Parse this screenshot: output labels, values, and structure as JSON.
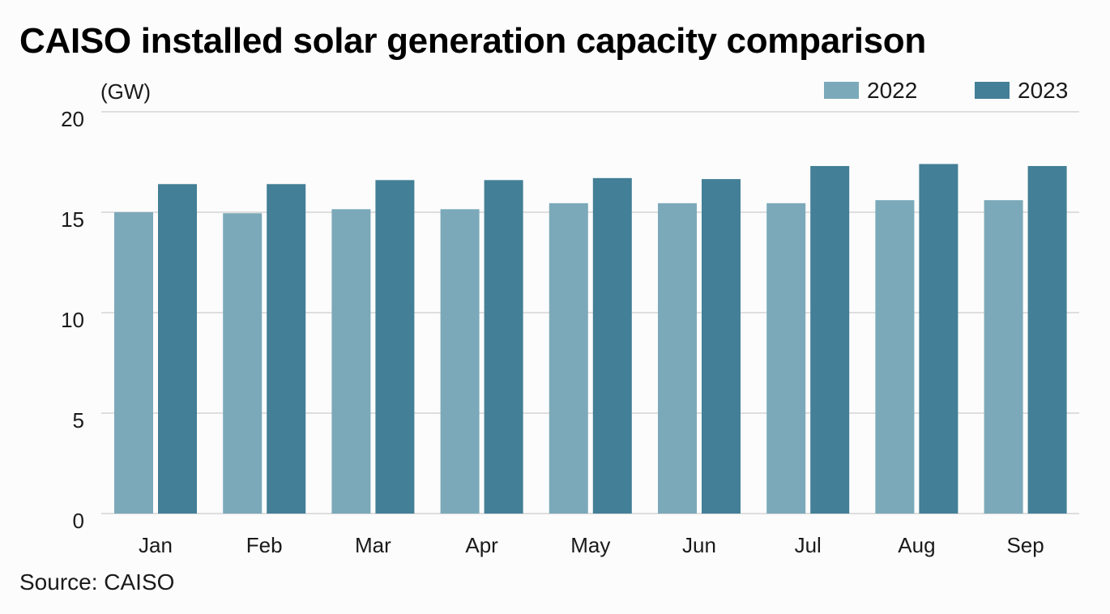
{
  "chart_data": {
    "type": "bar",
    "title": "CAISO installed solar generation capacity comparison",
    "xlabel": "",
    "ylabel": "(GW)",
    "ylim": [
      0,
      20
    ],
    "yticks": [
      0,
      5,
      10,
      15,
      20
    ],
    "grid": true,
    "legend_position": "top-right",
    "categories": [
      "Jan",
      "Feb",
      "Mar",
      "Apr",
      "May",
      "Jun",
      "Jul",
      "Aug",
      "Sep"
    ],
    "series": [
      {
        "name": "2022",
        "color": "#7ba9b9",
        "values": [
          15.0,
          14.95,
          15.15,
          15.15,
          15.45,
          15.45,
          15.45,
          15.6,
          15.6
        ]
      },
      {
        "name": "2023",
        "color": "#437f96",
        "values": [
          16.4,
          16.4,
          16.6,
          16.6,
          16.7,
          16.65,
          17.3,
          17.4,
          17.3
        ]
      }
    ],
    "source": "Source: CAISO"
  }
}
